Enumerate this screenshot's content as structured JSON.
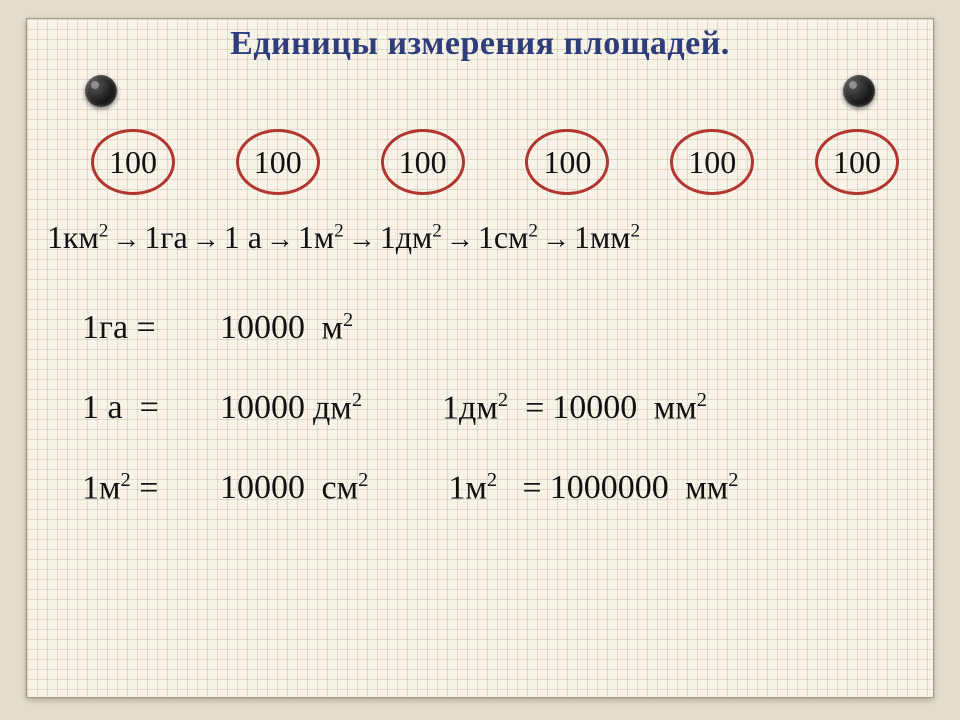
{
  "title": "Единицы измерения площадей.",
  "figure": {
    "type": "infographic",
    "background_color": "#f7f3e8",
    "grid_color": "#b4aa8c",
    "circle_stroke": "#b0362f",
    "text_color": "#111111",
    "title_color": "#2f3e7a",
    "rivet_color": "#1d1d1d"
  },
  "factors": [
    "100",
    "100",
    "100",
    "100",
    "100",
    "100"
  ],
  "units": [
    "1км",
    "1га",
    "1 а",
    "1м",
    "1дм",
    "1см",
    "1мм"
  ],
  "unit_has_square": [
    true,
    false,
    false,
    true,
    true,
    true,
    true
  ],
  "equations": {
    "r1": {
      "lhs": "1га",
      "val": "10000",
      "unit": "м",
      "sq": true
    },
    "r2a": {
      "lhs": "1 а",
      "val": "10000",
      "unit": "дм",
      "sq": true
    },
    "r2b": {
      "lhs_unit": "1дм",
      "lhs_sq": true,
      "val": "10000",
      "unit": "мм",
      "sq": true
    },
    "r3a": {
      "lhs_unit": "1м",
      "lhs_sq": true,
      "val": "10000",
      "unit": "см",
      "sq": true
    },
    "r3b": {
      "lhs_unit": "1м",
      "lhs_sq": true,
      "val": "1000000",
      "unit": "мм",
      "sq": true
    }
  }
}
